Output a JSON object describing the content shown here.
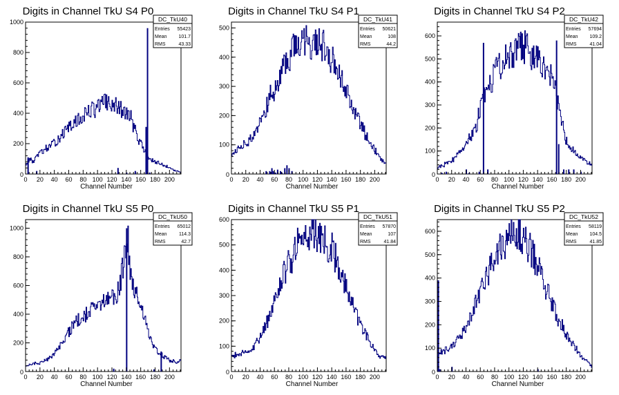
{
  "chart_data": [
    {
      "type": "histogram",
      "title": "Digits in Channel TkU S4 P0",
      "xlabel": "Channel Number",
      "ylabel": "",
      "xlim": [
        0,
        216
      ],
      "ylim": [
        0,
        1000
      ],
      "xticks": [
        "0",
        "20",
        "40",
        "60",
        "80",
        "100",
        "120",
        "140",
        "160",
        "180",
        "200"
      ],
      "yticks": [
        "200",
        "400",
        "600",
        "800",
        "1000"
      ],
      "line_color": "#00007f",
      "stats": {
        "name": "DC_TkU40",
        "rows": [
          {
            "label": "Entries",
            "value": "55423"
          },
          {
            "label": "Mean",
            "value": "101.7"
          },
          {
            "label": "RMS",
            "value": "43.33"
          }
        ]
      },
      "profile": [
        [
          0,
          60
        ],
        [
          6,
          100
        ],
        [
          10,
          80
        ],
        [
          20,
          140
        ],
        [
          30,
          170
        ],
        [
          40,
          200
        ],
        [
          50,
          260
        ],
        [
          60,
          300
        ],
        [
          70,
          340
        ],
        [
          80,
          380
        ],
        [
          90,
          420
        ],
        [
          100,
          440
        ],
        [
          110,
          470
        ],
        [
          120,
          460
        ],
        [
          126,
          440
        ],
        [
          134,
          420
        ],
        [
          140,
          400
        ],
        [
          146,
          380
        ],
        [
          150,
          310
        ],
        [
          155,
          260
        ],
        [
          160,
          200
        ],
        [
          166,
          150
        ],
        [
          172,
          100
        ],
        [
          180,
          80
        ],
        [
          190,
          60
        ],
        [
          200,
          40
        ],
        [
          210,
          20
        ],
        [
          216,
          15
        ]
      ],
      "spikes": [
        [
          3,
          110
        ],
        [
          15,
          20
        ],
        [
          128,
          40
        ],
        [
          140,
          10
        ],
        [
          152,
          20
        ],
        [
          167,
          310
        ],
        [
          169,
          960
        ],
        [
          172,
          10
        ]
      ]
    },
    {
      "type": "histogram",
      "title": "Digits in Channel TkU S4 P1",
      "xlabel": "Channel Number",
      "ylabel": "",
      "xlim": [
        0,
        216
      ],
      "ylim": [
        0,
        520
      ],
      "xticks": [
        "0",
        "20",
        "40",
        "60",
        "80",
        "100",
        "120",
        "140",
        "160",
        "180",
        "200"
      ],
      "yticks": [
        "100",
        "200",
        "300",
        "400",
        "500"
      ],
      "line_color": "#00007f",
      "stats": {
        "name": "DC_TkU41",
        "rows": [
          {
            "label": "Entries",
            "value": "50621"
          },
          {
            "label": "Mean",
            "value": "108"
          },
          {
            "label": "RMS",
            "value": "44.2"
          }
        ]
      },
      "profile": [
        [
          0,
          60
        ],
        [
          10,
          90
        ],
        [
          20,
          100
        ],
        [
          30,
          130
        ],
        [
          40,
          180
        ],
        [
          50,
          240
        ],
        [
          60,
          290
        ],
        [
          70,
          340
        ],
        [
          80,
          400
        ],
        [
          85,
          450
        ],
        [
          90,
          460
        ],
        [
          100,
          470
        ],
        [
          110,
          450
        ],
        [
          120,
          460
        ],
        [
          125,
          450
        ],
        [
          130,
          430
        ],
        [
          140,
          400
        ],
        [
          150,
          340
        ],
        [
          160,
          290
        ],
        [
          170,
          230
        ],
        [
          180,
          170
        ],
        [
          190,
          120
        ],
        [
          200,
          80
        ],
        [
          210,
          50
        ],
        [
          216,
          30
        ]
      ],
      "spikes": [
        [
          48,
          10
        ],
        [
          53,
          10
        ],
        [
          56,
          20
        ],
        [
          58,
          10
        ],
        [
          61,
          5
        ],
        [
          64,
          15
        ],
        [
          68,
          10
        ],
        [
          70,
          5
        ],
        [
          74,
          20
        ],
        [
          77,
          30
        ],
        [
          80,
          20
        ],
        [
          84,
          10
        ]
      ]
    },
    {
      "type": "histogram",
      "title": "Digits in Channel TkU S4 P2",
      "xlabel": "Channel Number",
      "ylabel": "",
      "xlim": [
        0,
        216
      ],
      "ylim": [
        0,
        660
      ],
      "xticks": [
        "0",
        "20",
        "40",
        "60",
        "80",
        "100",
        "120",
        "140",
        "160",
        "180",
        "200"
      ],
      "yticks": [
        "100",
        "200",
        "300",
        "400",
        "500",
        "600"
      ],
      "line_color": "#00007f",
      "stats": {
        "name": "DC_TkU42",
        "rows": [
          {
            "label": "Entries",
            "value": "57694"
          },
          {
            "label": "Mean",
            "value": "109.2"
          },
          {
            "label": "RMS",
            "value": "41.04"
          }
        ]
      },
      "profile": [
        [
          0,
          30
        ],
        [
          10,
          40
        ],
        [
          20,
          60
        ],
        [
          30,
          90
        ],
        [
          40,
          130
        ],
        [
          50,
          180
        ],
        [
          55,
          210
        ],
        [
          60,
          300
        ],
        [
          66,
          330
        ],
        [
          70,
          350
        ],
        [
          76,
          400
        ],
        [
          80,
          440
        ],
        [
          90,
          480
        ],
        [
          100,
          520
        ],
        [
          110,
          540
        ],
        [
          120,
          560
        ],
        [
          130,
          530
        ],
        [
          140,
          500
        ],
        [
          150,
          470
        ],
        [
          160,
          440
        ],
        [
          170,
          280
        ],
        [
          176,
          200
        ],
        [
          180,
          140
        ],
        [
          190,
          100
        ],
        [
          200,
          70
        ],
        [
          210,
          50
        ],
        [
          216,
          40
        ]
      ],
      "spikes": [
        [
          6,
          5
        ],
        [
          12,
          10
        ],
        [
          40,
          20
        ],
        [
          44,
          5
        ],
        [
          58,
          10
        ],
        [
          64,
          570
        ],
        [
          70,
          20
        ],
        [
          166,
          580
        ],
        [
          169,
          130
        ],
        [
          176,
          20
        ],
        [
          183,
          20
        ],
        [
          190,
          20
        ],
        [
          200,
          10
        ]
      ]
    },
    {
      "type": "histogram",
      "title": "Digits in Channel TkU S5 P0",
      "xlabel": "Channel Number",
      "ylabel": "",
      "xlim": [
        0,
        216
      ],
      "ylim": [
        0,
        1060
      ],
      "xticks": [
        "0",
        "20",
        "40",
        "60",
        "80",
        "100",
        "120",
        "140",
        "160",
        "180",
        "200"
      ],
      "yticks": [
        "200",
        "400",
        "600",
        "800",
        "1000"
      ],
      "line_color": "#00007f",
      "stats": {
        "name": "DC_TkU50",
        "rows": [
          {
            "label": "Entries",
            "value": "65012"
          },
          {
            "label": "Mean",
            "value": "114.3"
          },
          {
            "label": "RMS",
            "value": "42.7"
          }
        ]
      },
      "profile": [
        [
          0,
          40
        ],
        [
          10,
          50
        ],
        [
          20,
          60
        ],
        [
          30,
          80
        ],
        [
          40,
          120
        ],
        [
          50,
          200
        ],
        [
          60,
          280
        ],
        [
          70,
          340
        ],
        [
          80,
          390
        ],
        [
          90,
          430
        ],
        [
          100,
          460
        ],
        [
          110,
          490
        ],
        [
          120,
          510
        ],
        [
          126,
          530
        ],
        [
          130,
          600
        ],
        [
          134,
          700
        ],
        [
          138,
          800
        ],
        [
          142,
          950
        ],
        [
          146,
          700
        ],
        [
          150,
          580
        ],
        [
          156,
          500
        ],
        [
          160,
          460
        ],
        [
          166,
          360
        ],
        [
          170,
          300
        ],
        [
          176,
          200
        ],
        [
          180,
          180
        ],
        [
          186,
          130
        ],
        [
          190,
          110
        ],
        [
          200,
          80
        ],
        [
          210,
          60
        ],
        [
          216,
          100
        ]
      ],
      "spikes": [
        [
          122,
          20
        ],
        [
          140,
          1000
        ],
        [
          178,
          15
        ],
        [
          188,
          140
        ]
      ]
    },
    {
      "type": "histogram",
      "title": "Digits in Channel TkU S5 P1",
      "xlabel": "Channel Number",
      "ylabel": "",
      "xlim": [
        0,
        216
      ],
      "ylim": [
        0,
        600
      ],
      "xticks": [
        "0",
        "20",
        "40",
        "60",
        "80",
        "100",
        "120",
        "140",
        "160",
        "180",
        "200"
      ],
      "yticks": [
        "100",
        "200",
        "300",
        "400",
        "500",
        "600"
      ],
      "line_color": "#00007f",
      "stats": {
        "name": "DC_TkU51",
        "rows": [
          {
            "label": "Entries",
            "value": "57870"
          },
          {
            "label": "Mean",
            "value": "107"
          },
          {
            "label": "RMS",
            "value": "41.84"
          }
        ]
      },
      "profile": [
        [
          0,
          60
        ],
        [
          10,
          70
        ],
        [
          20,
          75
        ],
        [
          30,
          90
        ],
        [
          40,
          140
        ],
        [
          50,
          200
        ],
        [
          60,
          280
        ],
        [
          70,
          360
        ],
        [
          80,
          430
        ],
        [
          90,
          490
        ],
        [
          100,
          530
        ],
        [
          110,
          550
        ],
        [
          120,
          545
        ],
        [
          130,
          520
        ],
        [
          140,
          480
        ],
        [
          150,
          420
        ],
        [
          160,
          340
        ],
        [
          170,
          260
        ],
        [
          180,
          190
        ],
        [
          190,
          130
        ],
        [
          200,
          80
        ],
        [
          210,
          60
        ],
        [
          216,
          55
        ]
      ],
      "spikes": []
    },
    {
      "type": "histogram",
      "title": "Digits in Channel TkU S5 P2",
      "xlabel": "Channel Number",
      "ylabel": "",
      "xlim": [
        0,
        216
      ],
      "ylim": [
        0,
        650
      ],
      "xticks": [
        "0",
        "20",
        "40",
        "60",
        "80",
        "100",
        "120",
        "140",
        "160",
        "180",
        "200"
      ],
      "yticks": [
        "100",
        "200",
        "300",
        "400",
        "500",
        "600"
      ],
      "line_color": "#00007f",
      "stats": {
        "name": "DC_TkU52",
        "rows": [
          {
            "label": "Entries",
            "value": "58119"
          },
          {
            "label": "Mean",
            "value": "104.5"
          },
          {
            "label": "RMS",
            "value": "41.85"
          }
        ]
      },
      "profile": [
        [
          0,
          50
        ],
        [
          5,
          80
        ],
        [
          10,
          90
        ],
        [
          20,
          110
        ],
        [
          30,
          140
        ],
        [
          40,
          190
        ],
        [
          50,
          260
        ],
        [
          60,
          340
        ],
        [
          70,
          410
        ],
        [
          80,
          480
        ],
        [
          90,
          540
        ],
        [
          100,
          580
        ],
        [
          110,
          600
        ],
        [
          120,
          570
        ],
        [
          130,
          520
        ],
        [
          140,
          450
        ],
        [
          150,
          370
        ],
        [
          160,
          290
        ],
        [
          170,
          220
        ],
        [
          180,
          160
        ],
        [
          190,
          110
        ],
        [
          200,
          70
        ],
        [
          210,
          40
        ],
        [
          216,
          20
        ]
      ],
      "spikes": [
        [
          1,
          390
        ],
        [
          3,
          10
        ],
        [
          20,
          20
        ],
        [
          140,
          10
        ]
      ]
    }
  ]
}
